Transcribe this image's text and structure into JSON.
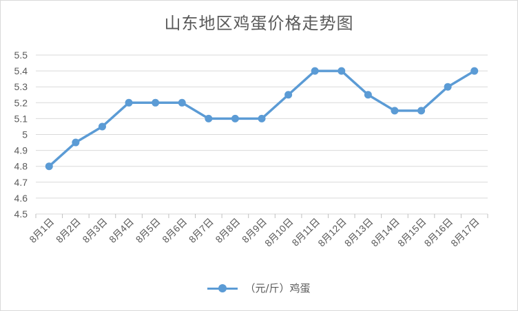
{
  "chart_data": {
    "type": "line",
    "title": "山东地区鸡蛋价格走势图",
    "categories": [
      "8月1日",
      "8月2日",
      "8月3日",
      "8月4日",
      "8月5日",
      "8月6日",
      "8月7日",
      "8月8日",
      "8月9日",
      "8月10日",
      "8月11日",
      "8月12日",
      "8月13日",
      "8月14日",
      "8月15日",
      "8月16日",
      "8月17日"
    ],
    "series": [
      {
        "name": "（元/斤）鸡蛋",
        "values": [
          4.8,
          4.95,
          5.05,
          5.2,
          5.2,
          5.2,
          5.1,
          5.1,
          5.1,
          5.25,
          5.4,
          5.4,
          5.25,
          5.15,
          5.15,
          5.3,
          5.4
        ]
      }
    ],
    "yticks": [
      "4.5",
      "4.6",
      "4.7",
      "4.8",
      "4.9",
      "5",
      "5.1",
      "5.2",
      "5.3",
      "5.4",
      "5.5"
    ],
    "ylim": [
      4.5,
      5.5
    ],
    "xlabel": "",
    "ylabel": "",
    "grid": true,
    "legend": "bottom",
    "color": "#5b9bd5"
  }
}
